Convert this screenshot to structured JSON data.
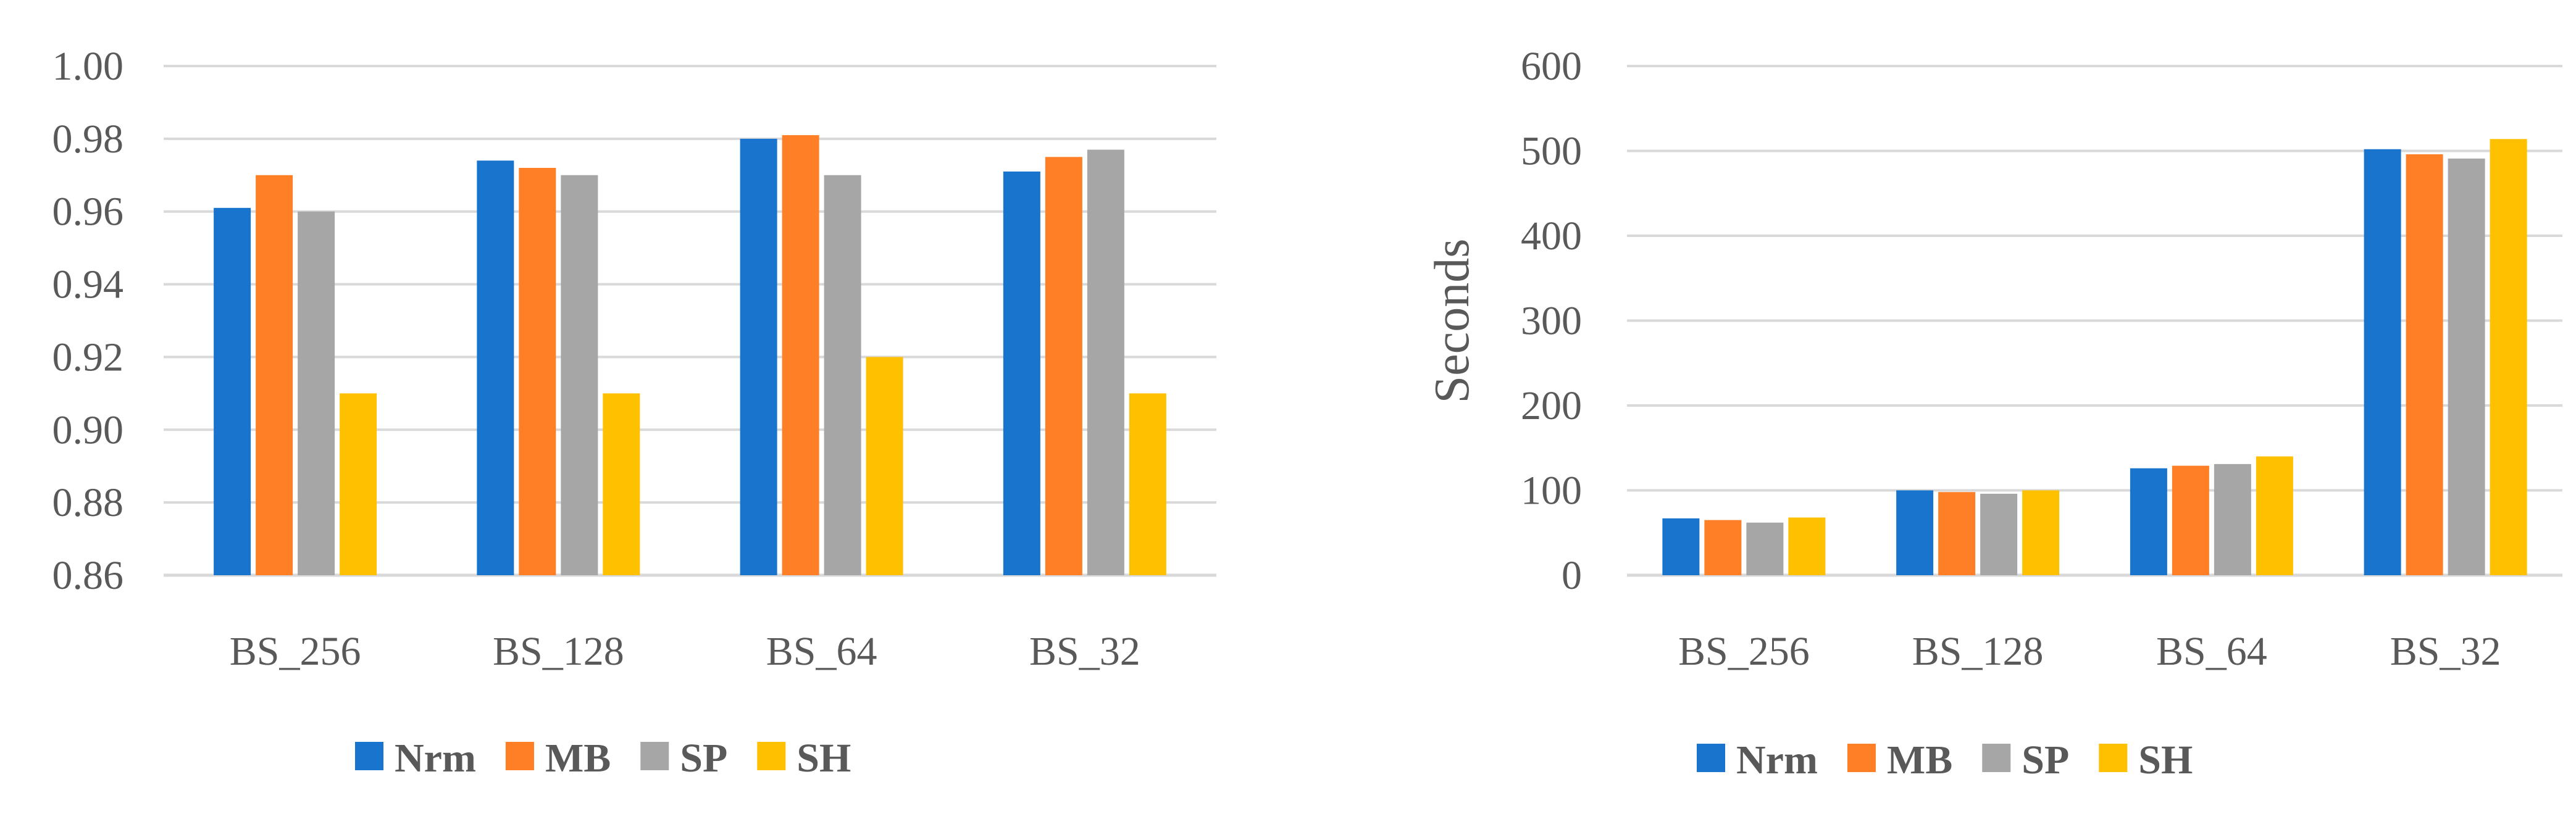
{
  "colors": {
    "Nrm": "#1874CD",
    "MB": "#FF7F27",
    "SP": "#A6A6A6",
    "SH": "#FFC000",
    "grid": "#D9D9D9",
    "text": "#595959"
  },
  "chart_data": [
    {
      "type": "bar",
      "title": "",
      "xlabel": "",
      "ylabel": "",
      "categories": [
        "BS_256",
        "BS_128",
        "BS_64",
        "BS_32"
      ],
      "ylim": [
        0.86,
        1.0
      ],
      "yticks": [
        "0.86",
        "0.88",
        "0.90",
        "0.92",
        "0.94",
        "0.96",
        "0.98",
        "1.00"
      ],
      "grid": true,
      "legend": "bottom",
      "series": [
        {
          "name": "Nrm",
          "values": [
            0.961,
            0.974,
            0.98,
            0.971
          ]
        },
        {
          "name": "MB",
          "values": [
            0.97,
            0.972,
            0.981,
            0.975
          ]
        },
        {
          "name": "SP",
          "values": [
            0.96,
            0.97,
            0.97,
            0.977
          ]
        },
        {
          "name": "SH",
          "values": [
            0.91,
            0.91,
            0.92,
            0.91
          ]
        }
      ]
    },
    {
      "type": "bar",
      "title": "",
      "xlabel": "",
      "ylabel": "Seconds",
      "categories": [
        "BS_256",
        "BS_128",
        "BS_64",
        "BS_32"
      ],
      "ylim": [
        0,
        600
      ],
      "yticks": [
        "0",
        "100",
        "200",
        "300",
        "400",
        "500",
        "600"
      ],
      "grid": true,
      "legend": "bottom",
      "series": [
        {
          "name": "Nrm",
          "values": [
            67,
            100,
            126,
            502
          ]
        },
        {
          "name": "MB",
          "values": [
            65,
            98,
            129,
            496
          ]
        },
        {
          "name": "SP",
          "values": [
            62,
            96,
            131,
            491
          ]
        },
        {
          "name": "SH",
          "values": [
            68,
            100,
            140,
            514
          ]
        }
      ]
    }
  ]
}
